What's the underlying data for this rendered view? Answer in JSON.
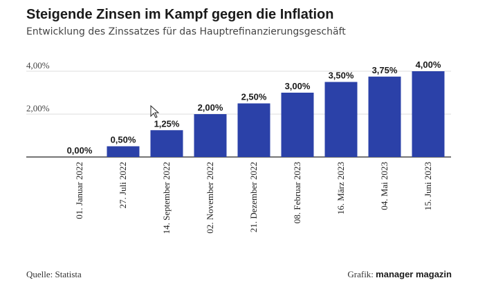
{
  "title": "Steigende Zinsen im Kampf gegen die Inflation",
  "subtitle": "Entwicklung des Zinssatzes für das Hauptrefinanzierungsgeschäft",
  "source": "Quelle: Statista",
  "credit": {
    "prefix": "Grafik:",
    "brand": "manager magazin"
  },
  "colors": {
    "bar": "#2b41a8",
    "grid": "#dddddd",
    "axis": "#222222",
    "text": "#1a1a1a"
  },
  "chart_data": {
    "type": "bar",
    "categories": [
      "01. Januar 2022",
      "27. Juli 2022",
      "14. September 2022",
      "02. November 2022",
      "21. Dezember 2022",
      "08. Februar 2023",
      "16. März 2023",
      "04. Mai 2023",
      "15. Juni 2023"
    ],
    "values": [
      0,
      0.5,
      1.25,
      2.0,
      2.5,
      3.0,
      3.5,
      3.75,
      4.0
    ],
    "value_labels": [
      "0,00%",
      "0,50%",
      "1,25%",
      "2,00%",
      "2,50%",
      "3,00%",
      "3,50%",
      "3,75%",
      "4,00%"
    ],
    "y_ticks": [
      2,
      4
    ],
    "y_tick_labels": [
      "2,00%",
      "4,00%"
    ],
    "ylim": [
      0,
      4
    ],
    "grid": true,
    "legend": "none"
  }
}
